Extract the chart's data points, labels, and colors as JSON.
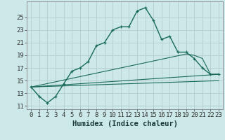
{
  "xlabel": "Humidex (Indice chaleur)",
  "bg_color": "#cce8e8",
  "grid_color": "#b8d0d0",
  "line_color": "#1a6b5a",
  "x_main": [
    0,
    1,
    2,
    3,
    4,
    5,
    6,
    7,
    8,
    9,
    10,
    11,
    12,
    13,
    14,
    15,
    16,
    17,
    18,
    19,
    20,
    21,
    22,
    23
  ],
  "y_main": [
    14.0,
    12.5,
    11.5,
    12.5,
    14.5,
    16.5,
    17.0,
    18.0,
    20.5,
    21.0,
    23.0,
    23.5,
    23.5,
    26.0,
    26.5,
    24.5,
    21.5,
    22.0,
    19.5,
    19.5,
    18.5,
    17.0,
    16.0,
    16.0
  ],
  "fan_lines": [
    {
      "x": [
        0,
        19,
        20,
        21,
        22,
        23
      ],
      "y": [
        14.0,
        19.2,
        19.0,
        18.5,
        16.0,
        16.0
      ]
    },
    {
      "x": [
        0,
        23
      ],
      "y": [
        14.0,
        16.0
      ]
    },
    {
      "x": [
        0,
        23
      ],
      "y": [
        14.0,
        15.0
      ]
    }
  ],
  "ylim": [
    10.5,
    27.5
  ],
  "xlim": [
    -0.5,
    23.5
  ],
  "yticks": [
    11,
    13,
    15,
    17,
    19,
    21,
    23,
    25
  ],
  "xticks": [
    0,
    1,
    2,
    3,
    4,
    5,
    6,
    7,
    8,
    9,
    10,
    11,
    12,
    13,
    14,
    15,
    16,
    17,
    18,
    19,
    20,
    21,
    22,
    23
  ],
  "tick_fontsize": 6.5,
  "xlabel_fontsize": 7.5
}
